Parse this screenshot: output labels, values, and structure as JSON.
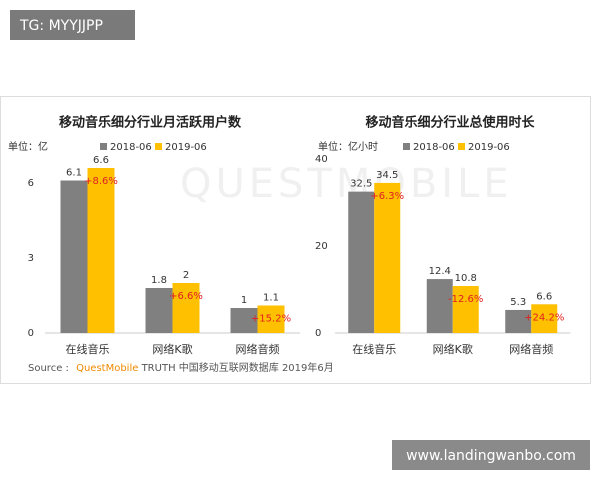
{
  "tag": "TG: MYYJJPP",
  "site": "www.landingwanbo.com",
  "watermark": "QUESTMOBILE",
  "source": {
    "label": "Source :",
    "brand": "QuestMobile",
    "text": "TRUTH 中国移动互联网数据库 2019年6月"
  },
  "chart_data": [
    {
      "type": "bar",
      "title": "移动音乐细分行业月活跃用户数",
      "unit": "单位：亿",
      "categories": [
        "在线音乐",
        "网络K歌",
        "网络音频"
      ],
      "series": [
        {
          "name": "2018-06",
          "color": "#808080",
          "values": [
            6.1,
            1.8,
            1.0
          ]
        },
        {
          "name": "2019-06",
          "color": "#ffc000",
          "values": [
            6.6,
            2.0,
            1.1
          ]
        }
      ],
      "annotations": [
        "+8.6%",
        "+6.6%",
        "+15.2%"
      ],
      "ylim": [
        0,
        7.5
      ],
      "yticks": [
        0,
        3,
        6
      ]
    },
    {
      "type": "bar",
      "title": "移动音乐细分行业总使用时长",
      "unit": "单位：亿小时",
      "categories": [
        "在线音乐",
        "网络K歌",
        "网络音频"
      ],
      "series": [
        {
          "name": "2018-06",
          "color": "#808080",
          "values": [
            32.5,
            12.4,
            5.3
          ]
        },
        {
          "name": "2019-06",
          "color": "#ffc000",
          "values": [
            34.5,
            10.8,
            6.6
          ]
        }
      ],
      "annotations": [
        "+6.3%",
        "-12.6%",
        "+24.2%"
      ],
      "ylim": [
        0,
        40
      ],
      "yticks": [
        0,
        20,
        40
      ]
    }
  ]
}
